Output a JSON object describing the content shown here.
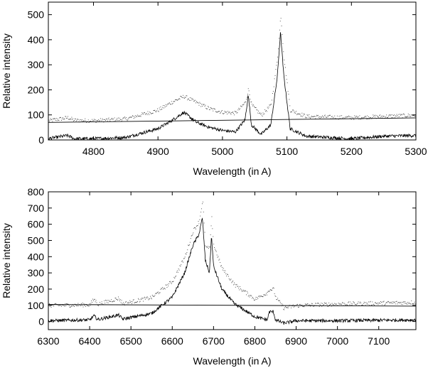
{
  "chart_data": [
    {
      "type": "line",
      "xlabel": "Wavelength (in A)",
      "ylabel": "Relative intensity",
      "xlim": [
        4730,
        5300
      ],
      "ylim": [
        0,
        550
      ],
      "xticks": [
        4800,
        4900,
        5000,
        5100,
        5200,
        5300
      ],
      "yticks": [
        0,
        100,
        200,
        300,
        400,
        500
      ],
      "grid": false,
      "series": [
        {
          "style": "dotted",
          "x": [
            4730,
            4760,
            4770,
            4800,
            4850,
            4900,
            4920,
            4940,
            4960,
            4980,
            5000,
            5020,
            5035,
            5040,
            5045,
            5060,
            5075,
            5085,
            5090,
            5095,
            5105,
            5130,
            5200,
            5250,
            5300
          ],
          "y": [
            78,
            90,
            80,
            78,
            85,
            120,
            150,
            175,
            150,
            125,
            112,
            108,
            150,
            205,
            140,
            100,
            140,
            330,
            500,
            330,
            120,
            95,
            90,
            95,
            100
          ]
        },
        {
          "style": "solid",
          "x": [
            4730,
            4760,
            4770,
            4800,
            4850,
            4900,
            4920,
            4940,
            4960,
            4980,
            5000,
            5020,
            5035,
            5040,
            5045,
            5060,
            5075,
            5085,
            5090,
            5095,
            5105,
            5130,
            5200,
            5250,
            5300
          ],
          "y": [
            5,
            18,
            5,
            5,
            10,
            45,
            75,
            110,
            70,
            50,
            38,
            32,
            80,
            180,
            60,
            22,
            60,
            250,
            430,
            260,
            45,
            15,
            5,
            15,
            18
          ]
        },
        {
          "style": "continuum",
          "x": [
            4730,
            5300
          ],
          "y": [
            70,
            88
          ]
        }
      ]
    },
    {
      "type": "line",
      "xlabel": "Wavelength (in A)",
      "ylabel": "Relative intensity",
      "xlim": [
        6300,
        7190
      ],
      "ylim": [
        -50,
        800
      ],
      "xticks": [
        6300,
        6400,
        6500,
        6600,
        6700,
        6800,
        6900,
        7000,
        7100
      ],
      "yticks": [
        0,
        100,
        200,
        300,
        400,
        500,
        600,
        700,
        800
      ],
      "grid": false,
      "series": [
        {
          "style": "dotted",
          "x": [
            6300,
            6400,
            6410,
            6420,
            6470,
            6480,
            6550,
            6600,
            6630,
            6650,
            6665,
            6673,
            6680,
            6690,
            6695,
            6700,
            6720,
            6750,
            6800,
            6830,
            6835,
            6845,
            6850,
            6870,
            6900,
            7000,
            7100,
            7190
          ],
          "y": [
            100,
            105,
            140,
            108,
            145,
            112,
            150,
            250,
            400,
            560,
            620,
            750,
            460,
            450,
            640,
            470,
            330,
            230,
            140,
            180,
            200,
            200,
            150,
            85,
            100,
            110,
            115,
            120
          ]
        },
        {
          "style": "solid",
          "x": [
            6300,
            6400,
            6410,
            6420,
            6470,
            6480,
            6550,
            6600,
            6630,
            6650,
            6665,
            6673,
            6680,
            6690,
            6695,
            6700,
            6720,
            6750,
            6800,
            6830,
            6835,
            6845,
            6850,
            6870,
            6900,
            7000,
            7100,
            7190
          ],
          "y": [
            5,
            10,
            35,
            12,
            40,
            15,
            50,
            150,
            300,
            470,
            540,
            640,
            380,
            300,
            530,
            340,
            200,
            110,
            30,
            10,
            60,
            60,
            10,
            -10,
            5,
            5,
            8,
            10
          ]
        },
        {
          "style": "continuum",
          "x": [
            6300,
            7190
          ],
          "y": [
            105,
            95
          ]
        }
      ]
    }
  ]
}
